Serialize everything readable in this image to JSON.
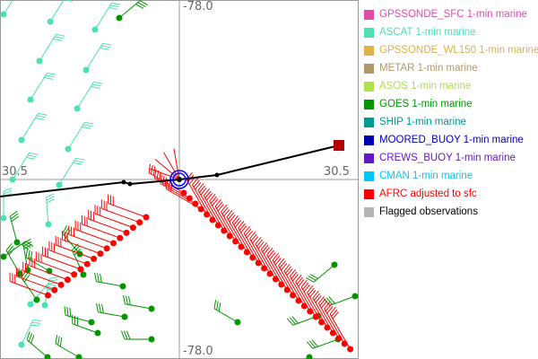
{
  "axes": {
    "lon_top": "-78.0",
    "lon_bottom": "-78.0",
    "lat_left": "30.5",
    "lat_right": "30.5"
  },
  "legend": [
    {
      "label": "GPSSONDE_SFC 1-min marine",
      "color": "#e04ca8"
    },
    {
      "label": "ASCAT 1-min marine",
      "color": "#4ce0b4"
    },
    {
      "label": "GPSSONDE_WL150 1-min marine",
      "color": "#e0b04c"
    },
    {
      "label": "METAR 1-min marine",
      "color": "#b0966a"
    },
    {
      "label": "ASOS 1-min marine",
      "color": "#b0e04c"
    },
    {
      "label": "GOES 1-min marine",
      "color": "#009600"
    },
    {
      "label": "SHIP 1-min marine",
      "color": "#009a96"
    },
    {
      "label": "MOORED_BUOY 1-min marine",
      "color": "#0000b4"
    },
    {
      "label": "CREWS_BUOY 1-min marine",
      "color": "#6418c8"
    },
    {
      "label": "CMAN 1-min marine",
      "color": "#00c8ff"
    },
    {
      "label": "AFRC adjusted to sfc",
      "color": "#ff0000"
    },
    {
      "label": "Flagged observations",
      "color": "#b4b4b4",
      "text_color": "#000000"
    }
  ],
  "track": {
    "line_color": "#000000",
    "end_marker_color": "#b40000",
    "center_marker_color": "#0000ff"
  }
}
